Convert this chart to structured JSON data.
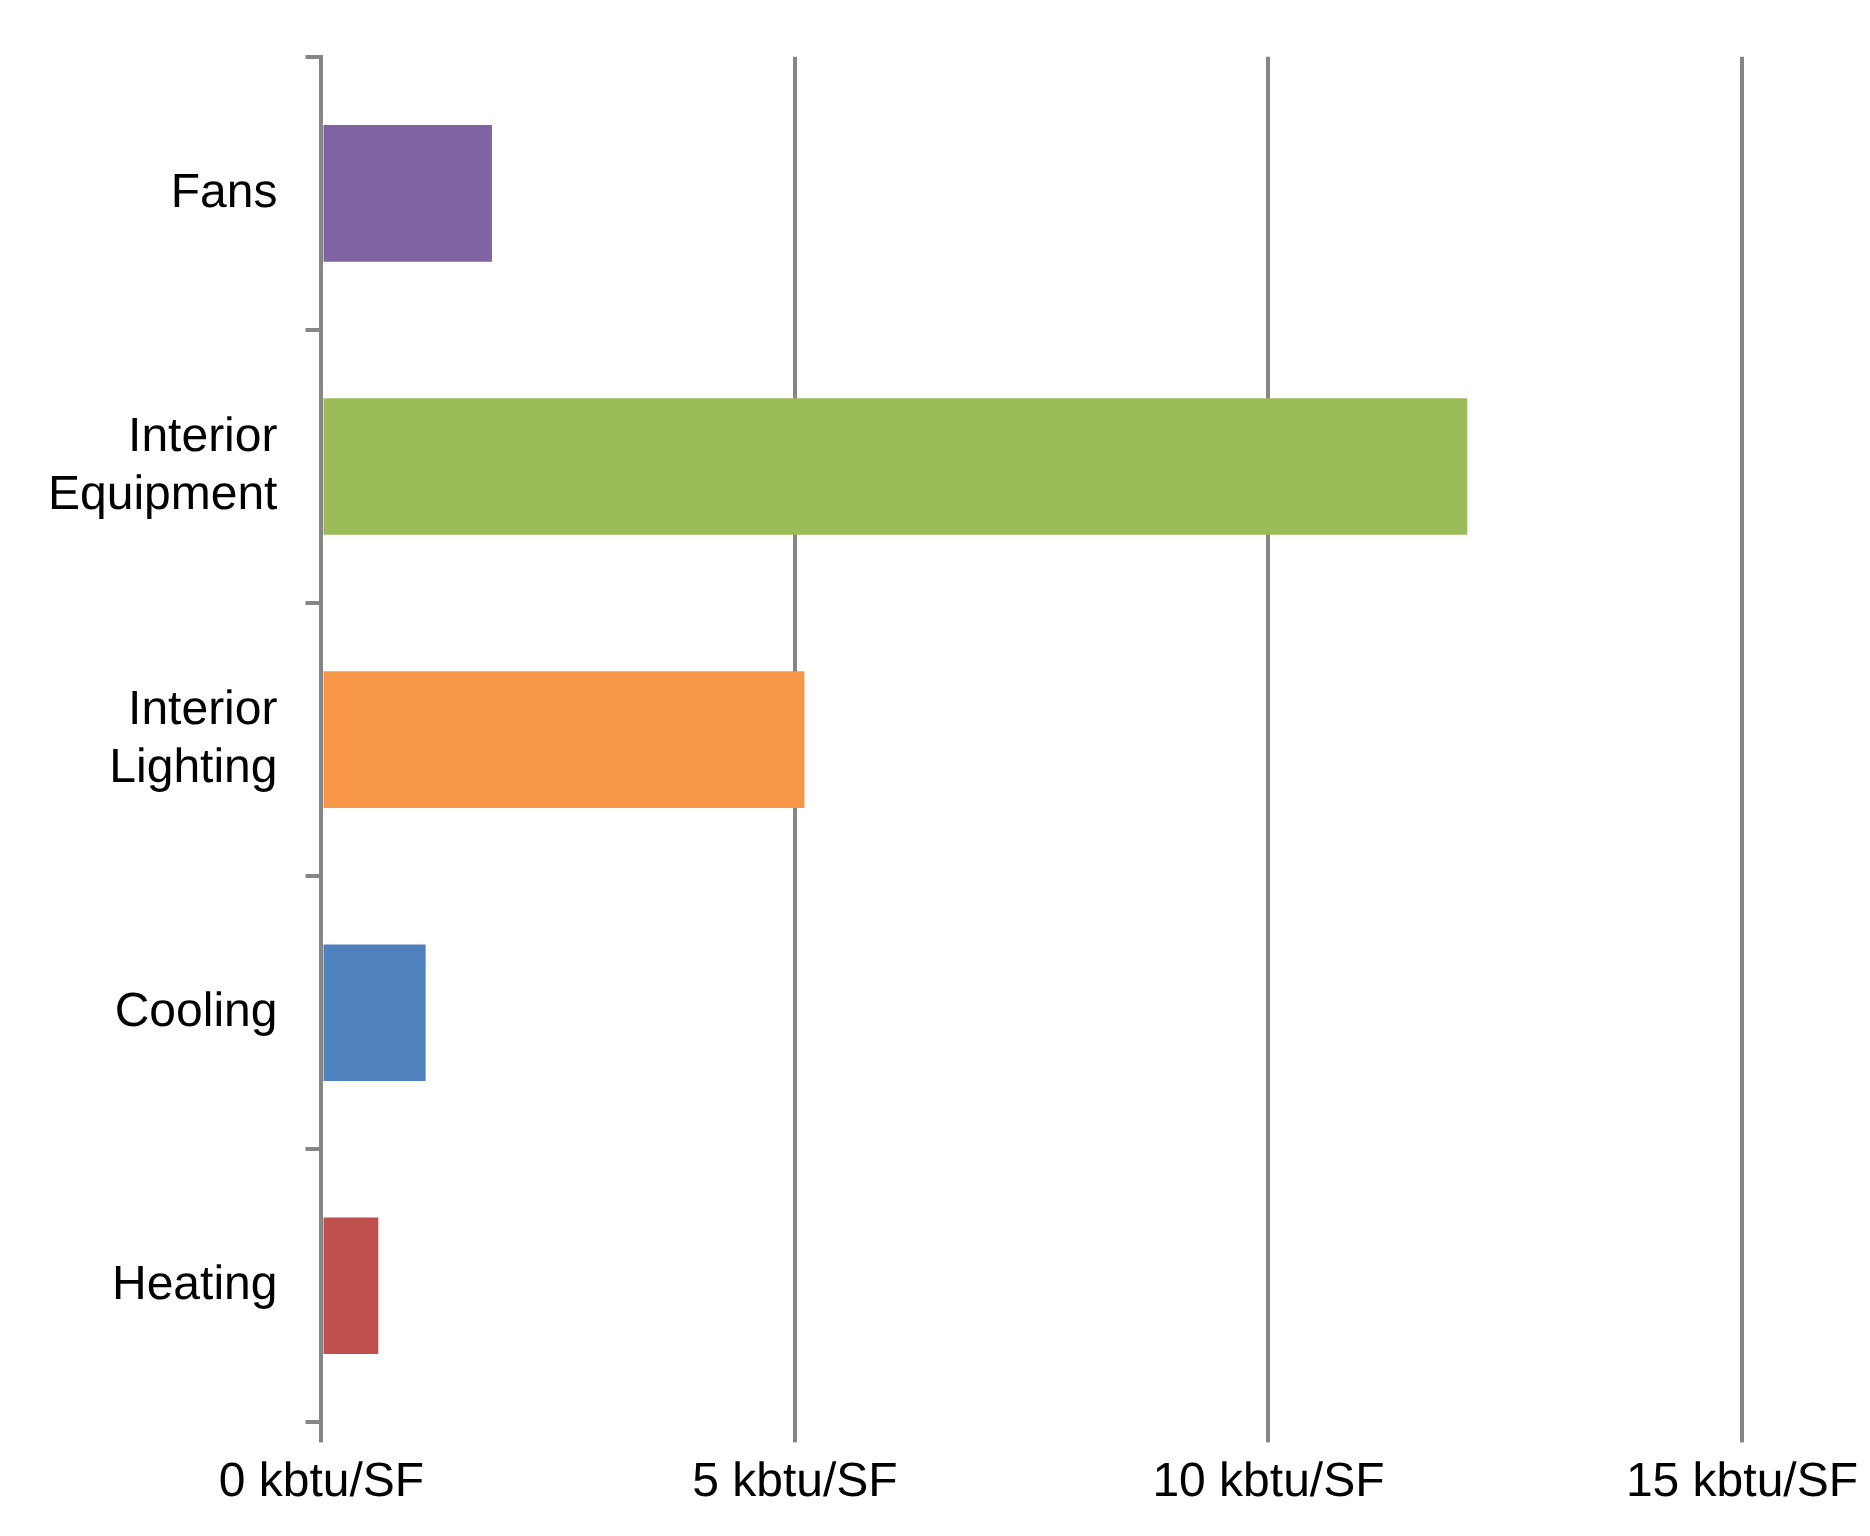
{
  "chart_data": {
    "type": "bar",
    "orientation": "horizontal",
    "categories": [
      "Fans",
      "Interior Equipment",
      "Interior Lighting",
      "Cooling",
      "Heating"
    ],
    "values": [
      1.8,
      12.1,
      5.1,
      1.1,
      0.6
    ],
    "colors": [
      "#8064a2",
      "#9bbb59",
      "#f79646",
      "#4f81bd",
      "#c0504d"
    ],
    "xlim": [
      0,
      15
    ],
    "xticks": [
      {
        "value": 0,
        "label": "0 kbtu/SF"
      },
      {
        "value": 5,
        "label": "5 kbtu/SF"
      },
      {
        "value": 10,
        "label": "10 kbtu/SF"
      },
      {
        "value": 15,
        "label": "15 kbtu/SF"
      }
    ],
    "grid": "x",
    "legend": false
  }
}
